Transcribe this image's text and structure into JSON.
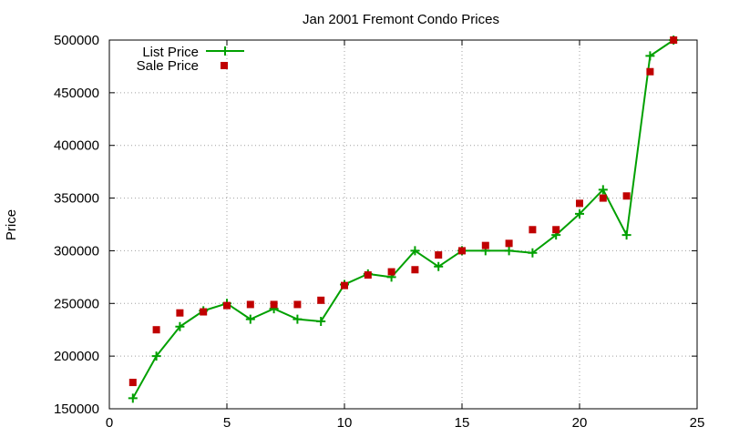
{
  "chart_data": {
    "type": "line",
    "title": "Jan 2001 Fremont Condo Prices",
    "ylabel": "Price",
    "xlabel": "",
    "xlim": [
      0,
      25
    ],
    "ylim": [
      150000,
      500000
    ],
    "xticks": [
      0,
      5,
      10,
      15,
      20,
      25
    ],
    "yticks": [
      150000,
      200000,
      250000,
      300000,
      350000,
      400000,
      450000,
      500000
    ],
    "grid": true,
    "legend_position": "top-left",
    "x": [
      1,
      2,
      3,
      4,
      5,
      6,
      7,
      8,
      9,
      10,
      11,
      12,
      13,
      14,
      15,
      16,
      17,
      18,
      19,
      20,
      21,
      22,
      23,
      24
    ],
    "series": [
      {
        "name": "List Price",
        "style": "line+cross",
        "color": "#00a000",
        "values": [
          160000,
          200000,
          228000,
          243000,
          250000,
          235000,
          245000,
          235000,
          233000,
          268000,
          278000,
          275000,
          300000,
          285000,
          300000,
          300000,
          300000,
          298000,
          315000,
          335000,
          358000,
          315000,
          485000,
          500000
        ]
      },
      {
        "name": "Sale Price",
        "style": "square-points",
        "color": "#c00000",
        "values": [
          175000,
          225000,
          241000,
          242000,
          248000,
          249000,
          249000,
          249000,
          253000,
          267000,
          277000,
          280000,
          282000,
          296000,
          300000,
          305000,
          307000,
          320000,
          320000,
          345000,
          350000,
          352000,
          470000,
          500000
        ]
      }
    ]
  }
}
